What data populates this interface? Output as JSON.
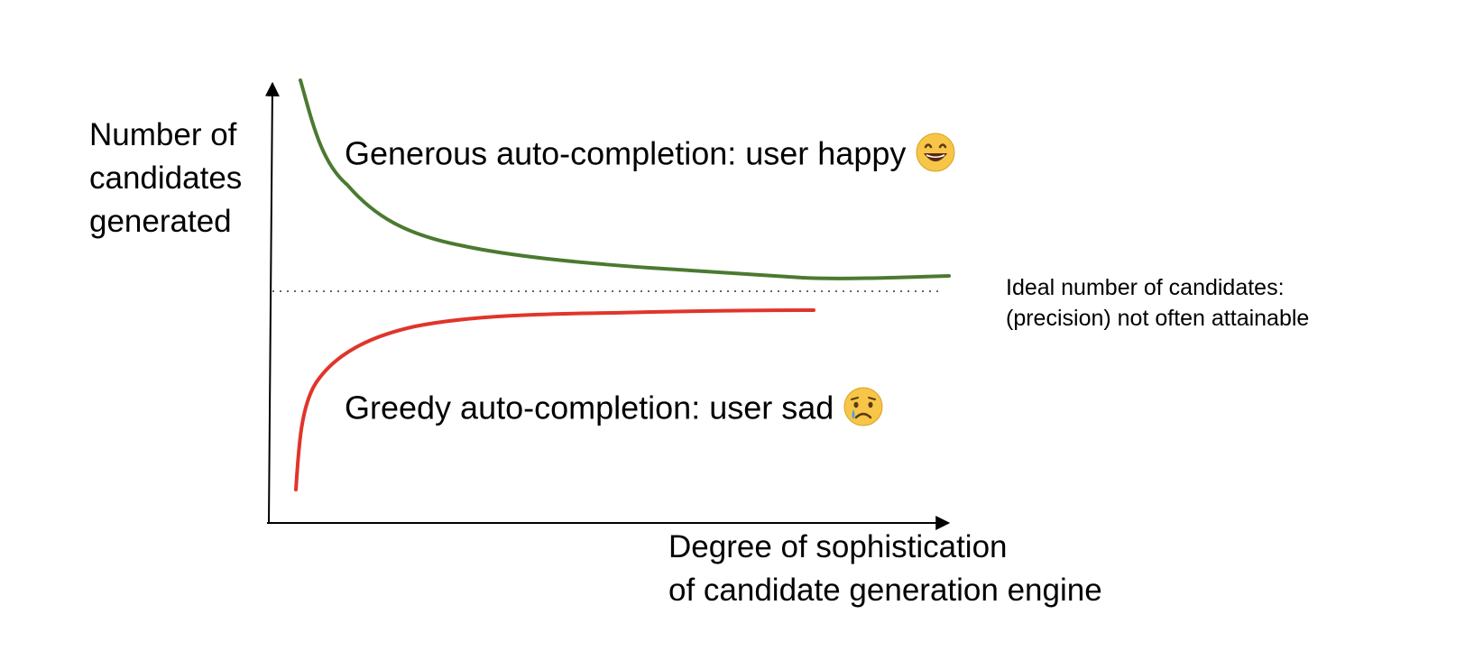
{
  "y_axis_label": {
    "lines": [
      "Number of",
      "candidates",
      "generated"
    ]
  },
  "x_axis_label": {
    "lines": [
      "Degree of sophistication",
      "of candidate generation engine"
    ]
  },
  "regions": {
    "generous": {
      "text": "Generous auto-completion: user happy",
      "emoji": "grinning-face-icon",
      "curve_color": "#4a7a30"
    },
    "greedy": {
      "text": "Greedy auto-completion: user sad",
      "emoji": "crying-face-icon",
      "curve_color": "#e0352b"
    }
  },
  "ideal_line": {
    "lines": [
      "Ideal number of candidates:",
      "(precision) not often attainable"
    ]
  },
  "colors": {
    "axis": "#000000",
    "dotted_line": "#333333",
    "emoji_face": "#f7c548",
    "emoji_tear": "#4aa3e0"
  }
}
